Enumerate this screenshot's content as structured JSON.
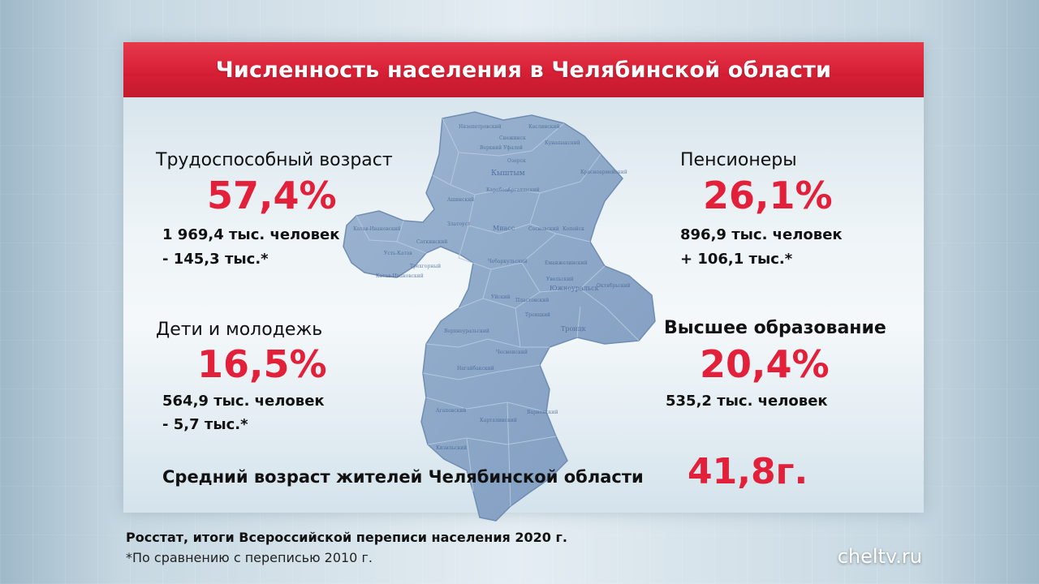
{
  "title": "Численность населения в Челябинской области",
  "working_age": {
    "heading": "Трудоспособный возраст",
    "percent": "57,4%",
    "count": "1 969,4 тыс. человек",
    "change": "- 145,3 тыс.*"
  },
  "pensioners": {
    "heading": "Пенсионеры",
    "percent": "26,1%",
    "count": "896,9 тыс. человек",
    "change": "+ 106,1 тыс.*"
  },
  "youth": {
    "heading": "Дети и молодежь",
    "percent": "16,5%",
    "count": "564,9 тыс. человек",
    "change": "- 5,7 тыс.*"
  },
  "higher_education": {
    "heading": "Высшее образование",
    "percent": "20,4%",
    "count": "535,2 тыс. человек"
  },
  "average_age": {
    "label": "Средний возраст жителей Челябинской области",
    "value": "41,8г."
  },
  "source": "Росстат, итоги Всероссийской переписи населения 2020 г.",
  "footnote": "*По сравнению с переписью 2010 г.",
  "watermark": "cheltv.ru",
  "colors": {
    "accent_red": "#e2203a",
    "title_bar": "#d71f35",
    "map_fill": "#8ea9c8"
  }
}
